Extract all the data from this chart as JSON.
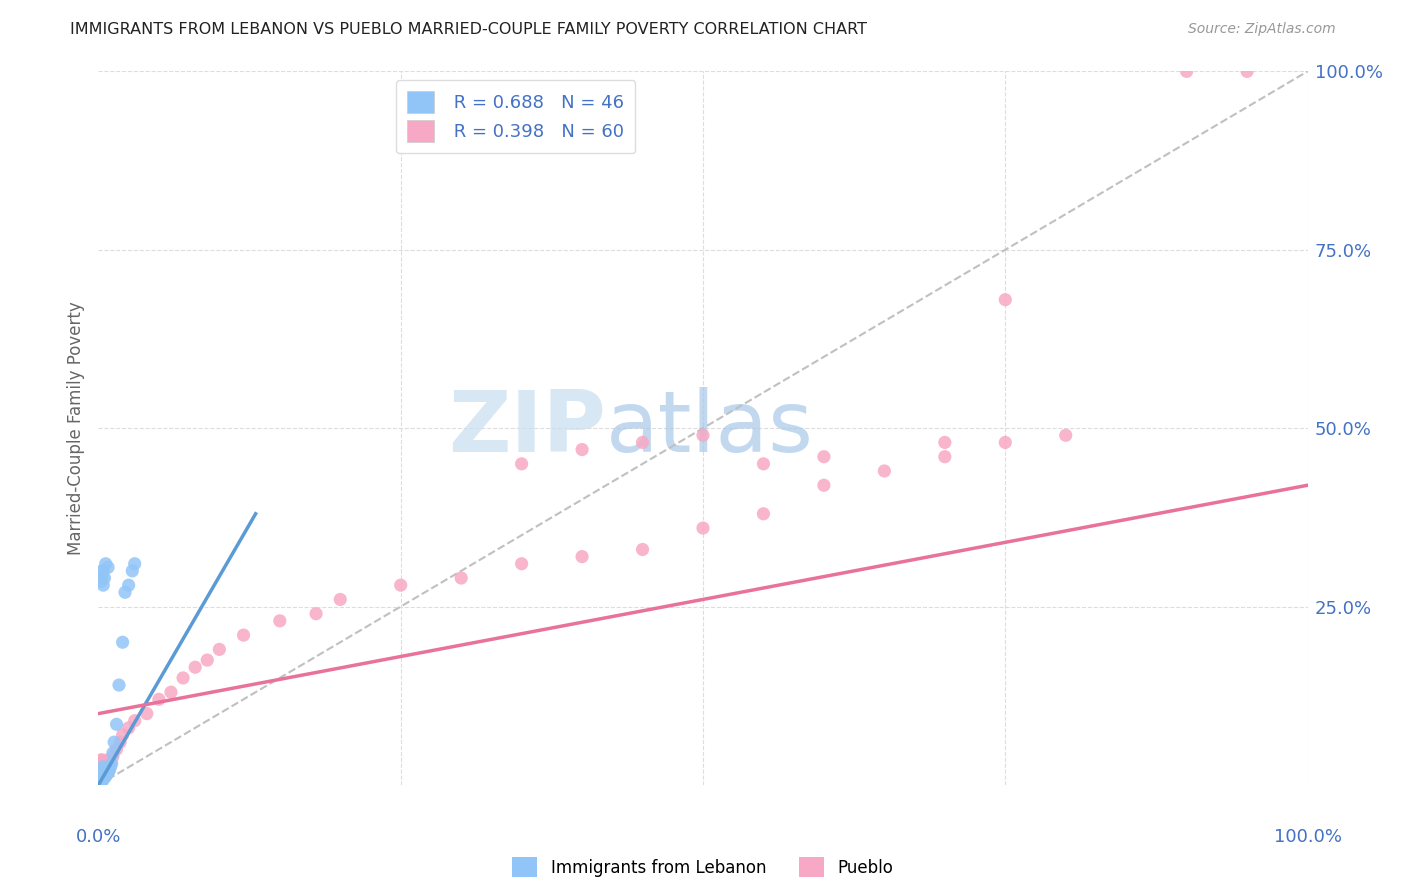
{
  "title": "IMMIGRANTS FROM LEBANON VS PUEBLO MARRIED-COUPLE FAMILY POVERTY CORRELATION CHART",
  "source": "Source: ZipAtlas.com",
  "ylabel": "Married-Couple Family Poverty",
  "legend_labels": [
    "Immigrants from Lebanon",
    "Pueblo"
  ],
  "legend_r1": "R = 0.688",
  "legend_n1": "N = 46",
  "legend_r2": "R = 0.398",
  "legend_n2": "N = 60",
  "color_blue": "#92C5F7",
  "color_pink": "#F7A8C4",
  "color_blue_text": "#4472C4",
  "color_pink_line": "#E8729A",
  "color_blue_line": "#5B9BD5",
  "color_dashed": "#BBBBBB",
  "watermark_zip": "ZIP",
  "watermark_atlas": "atlas",
  "blue_x": [
    0.001,
    0.001,
    0.001,
    0.001,
    0.001,
    0.002,
    0.002,
    0.002,
    0.002,
    0.002,
    0.003,
    0.003,
    0.003,
    0.003,
    0.004,
    0.004,
    0.004,
    0.005,
    0.005,
    0.005,
    0.006,
    0.006,
    0.007,
    0.007,
    0.008,
    0.008,
    0.009,
    0.01,
    0.011,
    0.012,
    0.013,
    0.015,
    0.017,
    0.02,
    0.022,
    0.025,
    0.028,
    0.03,
    0.002,
    0.003,
    0.004,
    0.005,
    0.003,
    0.004,
    0.006,
    0.008
  ],
  "blue_y": [
    0.005,
    0.008,
    0.01,
    0.015,
    0.02,
    0.003,
    0.006,
    0.01,
    0.015,
    0.02,
    0.005,
    0.01,
    0.018,
    0.025,
    0.008,
    0.015,
    0.022,
    0.01,
    0.018,
    0.025,
    0.012,
    0.02,
    0.015,
    0.022,
    0.018,
    0.025,
    0.02,
    0.025,
    0.03,
    0.045,
    0.06,
    0.085,
    0.14,
    0.2,
    0.27,
    0.28,
    0.3,
    0.31,
    0.285,
    0.29,
    0.28,
    0.29,
    0.3,
    0.3,
    0.31,
    0.305
  ],
  "pink_x": [
    0.001,
    0.001,
    0.001,
    0.002,
    0.002,
    0.002,
    0.003,
    0.003,
    0.003,
    0.004,
    0.004,
    0.005,
    0.005,
    0.006,
    0.006,
    0.007,
    0.007,
    0.008,
    0.008,
    0.009,
    0.01,
    0.012,
    0.015,
    0.018,
    0.02,
    0.025,
    0.03,
    0.04,
    0.05,
    0.06,
    0.07,
    0.08,
    0.09,
    0.1,
    0.12,
    0.15,
    0.18,
    0.2,
    0.25,
    0.3,
    0.35,
    0.4,
    0.45,
    0.5,
    0.55,
    0.6,
    0.65,
    0.7,
    0.75,
    0.8,
    0.35,
    0.4,
    0.45,
    0.5,
    0.55,
    0.6,
    0.7,
    0.75,
    0.9,
    0.95
  ],
  "pink_y": [
    0.02,
    0.03,
    0.025,
    0.01,
    0.025,
    0.035,
    0.015,
    0.025,
    0.035,
    0.02,
    0.03,
    0.015,
    0.025,
    0.02,
    0.03,
    0.025,
    0.035,
    0.02,
    0.03,
    0.025,
    0.03,
    0.04,
    0.05,
    0.06,
    0.07,
    0.08,
    0.09,
    0.1,
    0.12,
    0.13,
    0.15,
    0.165,
    0.175,
    0.19,
    0.21,
    0.23,
    0.24,
    0.26,
    0.28,
    0.29,
    0.31,
    0.32,
    0.33,
    0.36,
    0.38,
    0.42,
    0.44,
    0.46,
    0.48,
    0.49,
    0.45,
    0.47,
    0.48,
    0.49,
    0.45,
    0.46,
    0.48,
    0.68,
    1.0,
    1.0
  ],
  "blue_line_x": [
    0.0,
    0.13
  ],
  "blue_line_y": [
    0.0,
    0.38
  ],
  "pink_line_x": [
    0.0,
    1.0
  ],
  "pink_line_y": [
    0.1,
    0.42
  ],
  "xlim": [
    0.0,
    1.0
  ],
  "ylim": [
    0.0,
    1.0
  ]
}
